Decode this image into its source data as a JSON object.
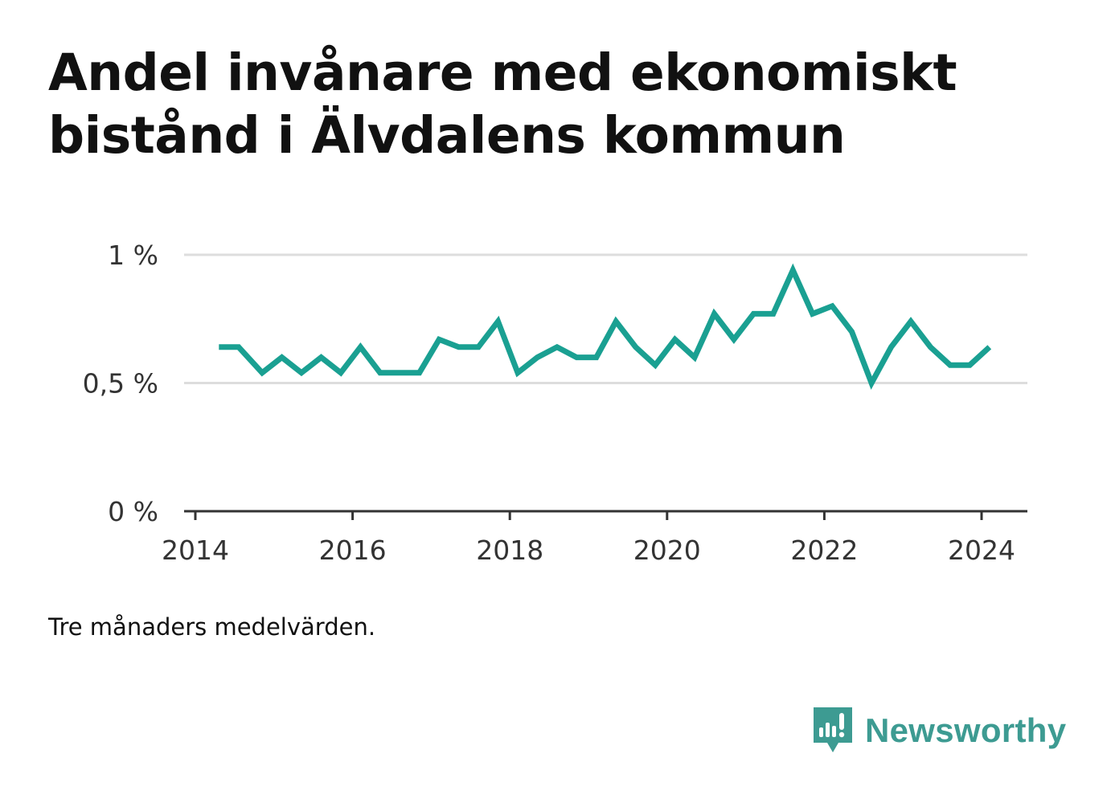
{
  "title": "Andel invånare med ekonomiskt bistånd i Älvdalens kommun",
  "footnote": "Tre månaders medelvärden.",
  "brand": {
    "name": "Newsworthy",
    "icon": "newsworthy-logo-icon",
    "color": "#3d9b92"
  },
  "colors": {
    "line": "#1aa092",
    "grid": "#dddddd",
    "axis": "#333333"
  },
  "chart_data": {
    "type": "line",
    "title": "Andel invånare med ekonomiskt bistånd i Älvdalens kommun",
    "xlabel": "",
    "ylabel": "",
    "xlim": [
      2014,
      2024.6
    ],
    "ylim": [
      0,
      1
    ],
    "x_ticks": [
      2014,
      2016,
      2018,
      2020,
      2022,
      2024
    ],
    "y_ticks": [
      {
        "value": 0,
        "label": "0 %"
      },
      {
        "value": 0.5,
        "label": "0,5 %"
      },
      {
        "value": 1,
        "label": "1 %"
      }
    ],
    "grid": true,
    "series": [
      {
        "x": [
          2014.3,
          2014.55,
          2014.85,
          2015.1,
          2015.35,
          2015.6,
          2015.85,
          2016.1,
          2016.35,
          2016.6,
          2016.85,
          2017.1,
          2017.35,
          2017.6,
          2017.85,
          2018.1,
          2018.35,
          2018.6,
          2018.85,
          2019.1,
          2019.35,
          2019.6,
          2019.85,
          2020.1,
          2020.35,
          2020.6,
          2020.85,
          2021.1,
          2021.35,
          2021.6,
          2021.85,
          2022.1,
          2022.35,
          2022.6,
          2022.85,
          2023.1,
          2023.35,
          2023.6,
          2023.85,
          2024.1
        ],
        "values": [
          0.64,
          0.64,
          0.54,
          0.6,
          0.54,
          0.6,
          0.54,
          0.64,
          0.54,
          0.54,
          0.54,
          0.67,
          0.64,
          0.64,
          0.74,
          0.54,
          0.6,
          0.64,
          0.6,
          0.6,
          0.74,
          0.64,
          0.57,
          0.67,
          0.6,
          0.77,
          0.67,
          0.77,
          0.77,
          0.94,
          0.77,
          0.8,
          0.7,
          0.5,
          0.64,
          0.74,
          0.64,
          0.57,
          0.57,
          0.64
        ]
      }
    ]
  }
}
